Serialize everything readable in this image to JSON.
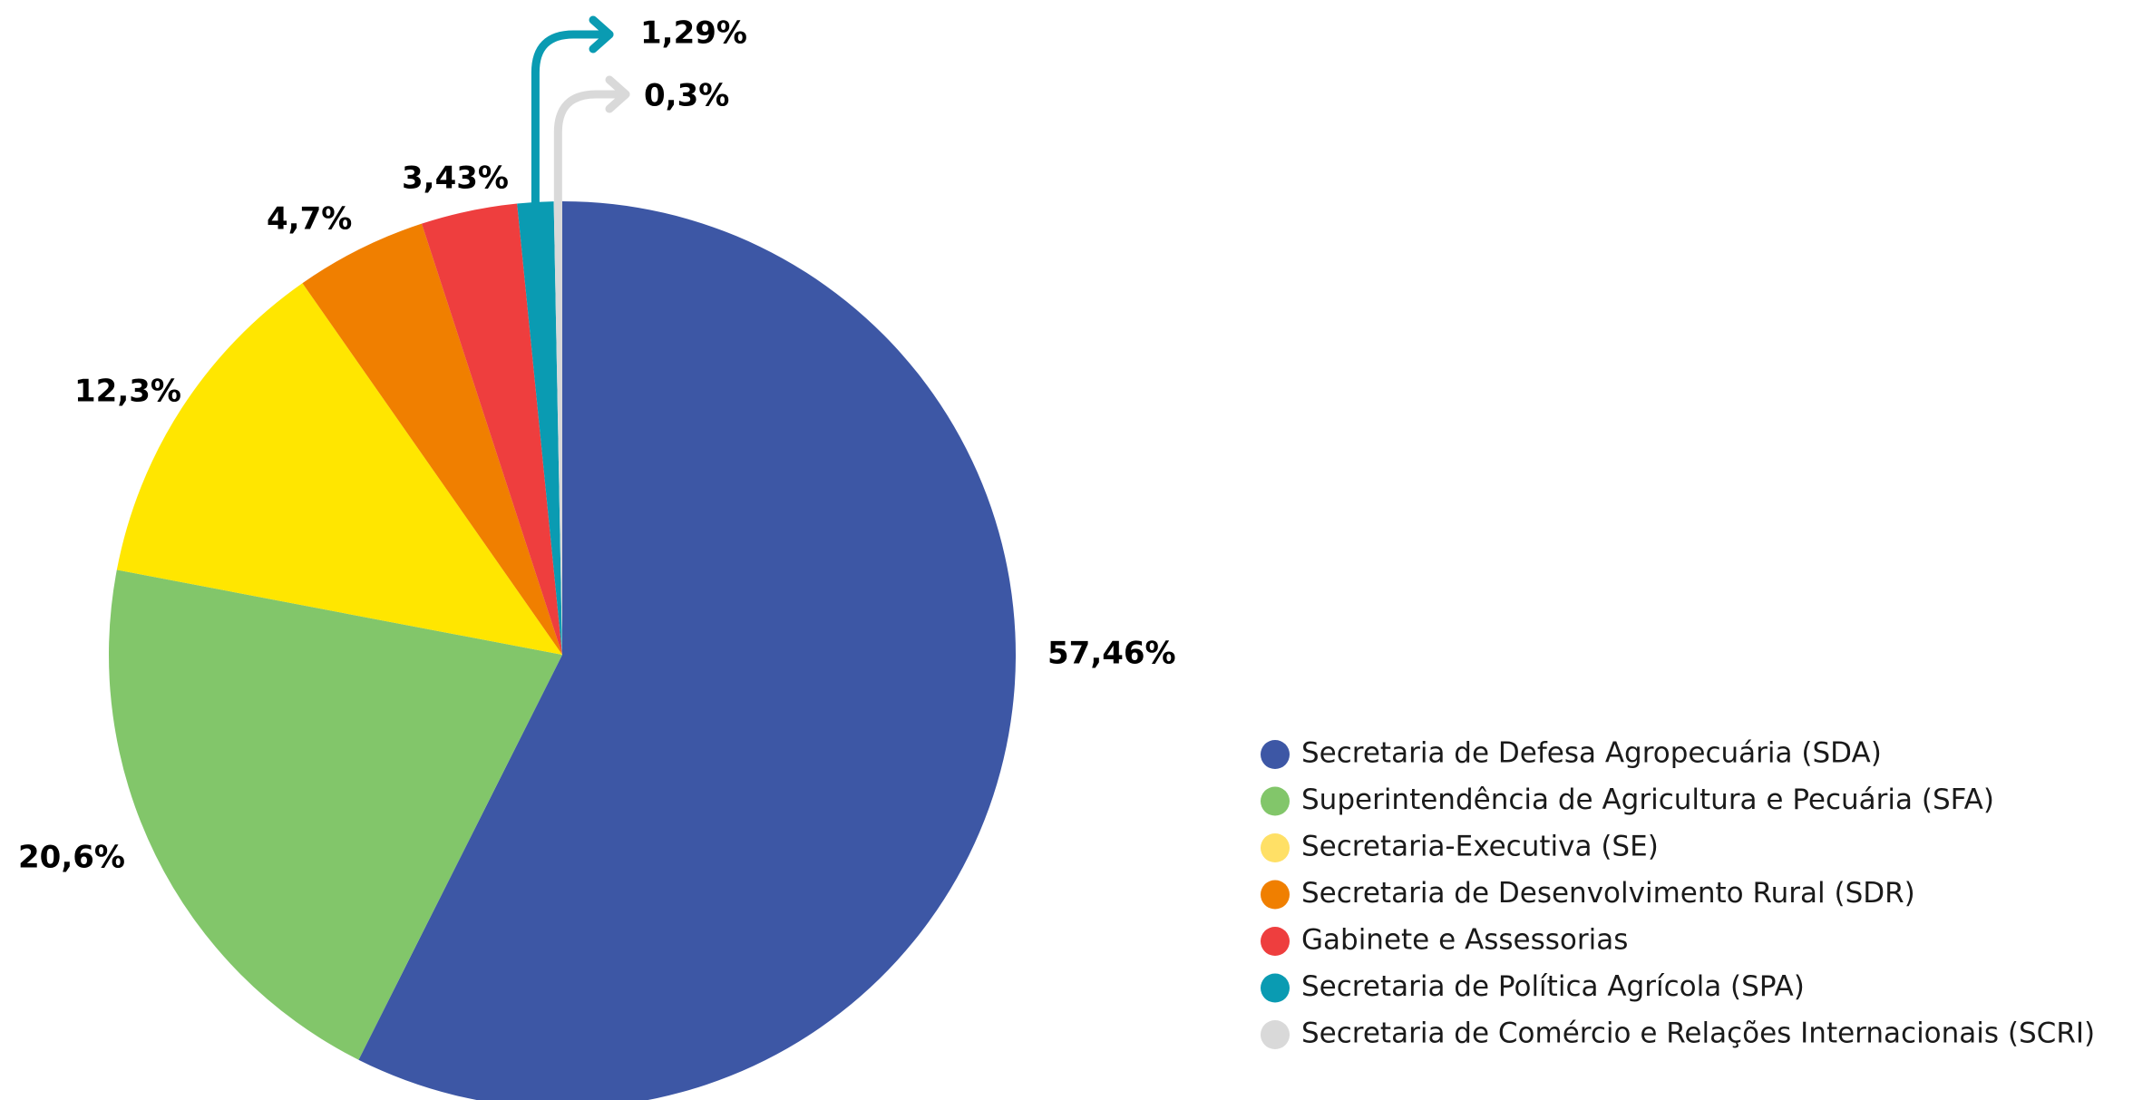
{
  "chart_data": {
    "type": "pie",
    "title": "",
    "start_angle_deg": 0,
    "direction": "clockwise",
    "legend_position": "right",
    "slices": [
      {
        "name": "Secretaria de Defesa Agropecuária (SDA)",
        "value": 57.46,
        "label": "57,46%",
        "color": "#3D57A5"
      },
      {
        "name": "Superintendência de Agricultura e Pecuária (SFA)",
        "value": 20.6,
        "label": "20,6%",
        "color": "#82C66A"
      },
      {
        "name": "Secretaria-Executiva (SE)",
        "value": 12.3,
        "label": "12,3%",
        "color": "#FFE600"
      },
      {
        "name": "Secretaria de Desenvolvimento Rural (SDR)",
        "value": 4.7,
        "label": "4,7%",
        "color": "#F07F00"
      },
      {
        "name": "Gabinete e Assessorias",
        "value": 3.43,
        "label": "3,43%",
        "color": "#EE3E3E"
      },
      {
        "name": "Secretaria de Política Agrícola (SPA)",
        "value": 1.29,
        "label": "1,29%",
        "color": "#0A9BB2"
      },
      {
        "name": "Secretaria de Comércio e Relações Internacionais (SCRI)",
        "value": 0.3,
        "label": "0,3%",
        "color": "#D9D9D9"
      }
    ],
    "legend_marker_colors": [
      "#3D57A5",
      "#82C66A",
      "#FFE066",
      "#F07F00",
      "#EE3E3E",
      "#0A9BB2",
      "#D9D9D9"
    ]
  }
}
